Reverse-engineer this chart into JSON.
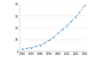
{
  "years": [
    1960,
    1965,
    1970,
    1975,
    1980,
    1985,
    1990,
    1995,
    2000,
    2005,
    2010,
    2015,
    2020,
    2024,
    2030
  ],
  "population": [
    2.3,
    2.8,
    3.5,
    4.4,
    5.6,
    7.5,
    9.7,
    12.0,
    15.7,
    18.6,
    21.9,
    25.7,
    29.4,
    32.9,
    38.9
  ],
  "line_color": "#5b9bd5",
  "marker": "o",
  "linestyle": "--",
  "background_color": "#ffffff",
  "grid_color": "#e0e0e0",
  "ylim": [
    0,
    40
  ],
  "xlim": [
    1957,
    2032
  ],
  "yticks": [
    0,
    10,
    20,
    30,
    40
  ],
  "xticks": [
    1960,
    1970,
    1980,
    1990,
    2000,
    2010,
    2020,
    2030
  ]
}
